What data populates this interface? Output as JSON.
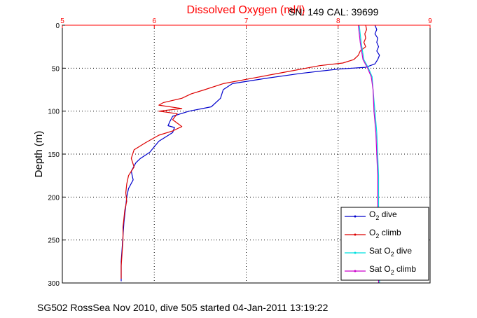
{
  "chart_data": {
    "type": "line",
    "title": "Dissolved Oxygen (ml/l)",
    "serial_label": "SN: 149  CAL: 39699",
    "ylabel": "Depth (m)",
    "footer": "SG502 RossSea Nov 2010, dive 505 started 04-Jan-2011 13:19:22",
    "xlim": [
      5,
      9
    ],
    "ylim": [
      0,
      300
    ],
    "y_reversed": true,
    "x_axis_position": "top",
    "grid": true,
    "legend_position": "bottom-right",
    "x_ticks": [
      "5",
      "6",
      "7",
      "8",
      "9"
    ],
    "y_ticks": [
      "0",
      "50",
      "100",
      "150",
      "200",
      "250",
      "300"
    ],
    "colors": {
      "title": "#ff0000",
      "x_axis": "#ff0000",
      "y_axis": "#000000",
      "grid": "#000000"
    },
    "series": [
      {
        "name": "O2 dive",
        "legend_main": "O",
        "legend_sub": "2",
        "legend_suffix": " dive",
        "color": "#0000cc",
        "points": [
          [
            8.4,
            0
          ],
          [
            8.42,
            5
          ],
          [
            8.4,
            10
          ],
          [
            8.43,
            15
          ],
          [
            8.42,
            20
          ],
          [
            8.44,
            25
          ],
          [
            8.42,
            30
          ],
          [
            8.45,
            35
          ],
          [
            8.43,
            40
          ],
          [
            8.4,
            45
          ],
          [
            8.3,
            49
          ],
          [
            8.0,
            51
          ],
          [
            7.6,
            56
          ],
          [
            7.2,
            62
          ],
          [
            6.85,
            68
          ],
          [
            6.75,
            75
          ],
          [
            6.72,
            85
          ],
          [
            6.62,
            95
          ],
          [
            6.38,
            100
          ],
          [
            6.2,
            106
          ],
          [
            6.17,
            112
          ],
          [
            6.15,
            117
          ],
          [
            6.22,
            119
          ],
          [
            6.2,
            125
          ],
          [
            6.05,
            135
          ],
          [
            5.95,
            148
          ],
          [
            5.85,
            155
          ],
          [
            5.8,
            160
          ],
          [
            5.75,
            170
          ],
          [
            5.77,
            180
          ],
          [
            5.72,
            190
          ],
          [
            5.7,
            200
          ],
          [
            5.69,
            210
          ],
          [
            5.68,
            220
          ],
          [
            5.67,
            230
          ],
          [
            5.66,
            245
          ],
          [
            5.65,
            260
          ],
          [
            5.64,
            275
          ],
          [
            5.64,
            290
          ],
          [
            5.64,
            298
          ]
        ]
      },
      {
        "name": "O2 climb",
        "legend_main": "O",
        "legend_sub": "2",
        "legend_suffix": " climb",
        "color": "#dd0000",
        "points": [
          [
            8.3,
            0
          ],
          [
            8.31,
            5
          ],
          [
            8.29,
            10
          ],
          [
            8.3,
            15
          ],
          [
            8.28,
            20
          ],
          [
            8.3,
            25
          ],
          [
            8.24,
            30
          ],
          [
            8.22,
            35
          ],
          [
            8.17,
            40
          ],
          [
            8.05,
            44
          ],
          [
            7.8,
            47
          ],
          [
            7.4,
            55
          ],
          [
            7.0,
            63
          ],
          [
            6.75,
            68
          ],
          [
            6.55,
            75
          ],
          [
            6.4,
            80
          ],
          [
            6.3,
            85
          ],
          [
            6.1,
            90
          ],
          [
            6.05,
            93
          ],
          [
            6.3,
            97
          ],
          [
            6.05,
            100
          ],
          [
            6.25,
            103
          ],
          [
            6.2,
            110
          ],
          [
            6.3,
            118
          ],
          [
            6.2,
            123
          ],
          [
            6.05,
            128
          ],
          [
            5.9,
            137
          ],
          [
            5.78,
            145
          ],
          [
            5.75,
            155
          ],
          [
            5.78,
            165
          ],
          [
            5.72,
            175
          ],
          [
            5.7,
            185
          ],
          [
            5.69,
            195
          ],
          [
            5.7,
            205
          ],
          [
            5.68,
            215
          ],
          [
            5.67,
            225
          ],
          [
            5.66,
            235
          ],
          [
            5.66,
            250
          ],
          [
            5.65,
            265
          ],
          [
            5.64,
            280
          ],
          [
            5.64,
            295
          ]
        ]
      },
      {
        "name": "Sat O2 dive",
        "legend_main": "Sat O",
        "legend_sub": "2",
        "legend_suffix": " dive",
        "color": "#00e0e0",
        "points": [
          [
            8.23,
            0
          ],
          [
            8.25,
            20
          ],
          [
            8.28,
            40
          ],
          [
            8.33,
            50
          ],
          [
            8.37,
            60
          ],
          [
            8.38,
            75
          ],
          [
            8.4,
            100
          ],
          [
            8.42,
            125
          ],
          [
            8.43,
            150
          ],
          [
            8.44,
            175
          ],
          [
            8.44,
            200
          ],
          [
            8.44,
            225
          ],
          [
            8.45,
            250
          ],
          [
            8.45,
            275
          ],
          [
            8.45,
            300
          ]
        ]
      },
      {
        "name": "Sat O2 climb",
        "legend_main": "Sat O",
        "legend_sub": "2",
        "legend_suffix": " climb",
        "color": "#cc00cc",
        "points": [
          [
            8.22,
            0
          ],
          [
            8.24,
            20
          ],
          [
            8.27,
            40
          ],
          [
            8.32,
            50
          ],
          [
            8.36,
            60
          ],
          [
            8.38,
            75
          ],
          [
            8.39,
            100
          ],
          [
            8.41,
            125
          ],
          [
            8.42,
            150
          ],
          [
            8.43,
            175
          ],
          [
            8.43,
            200
          ],
          [
            8.43,
            225
          ],
          [
            8.44,
            250
          ],
          [
            8.44,
            275
          ],
          [
            8.44,
            300
          ]
        ]
      }
    ]
  }
}
